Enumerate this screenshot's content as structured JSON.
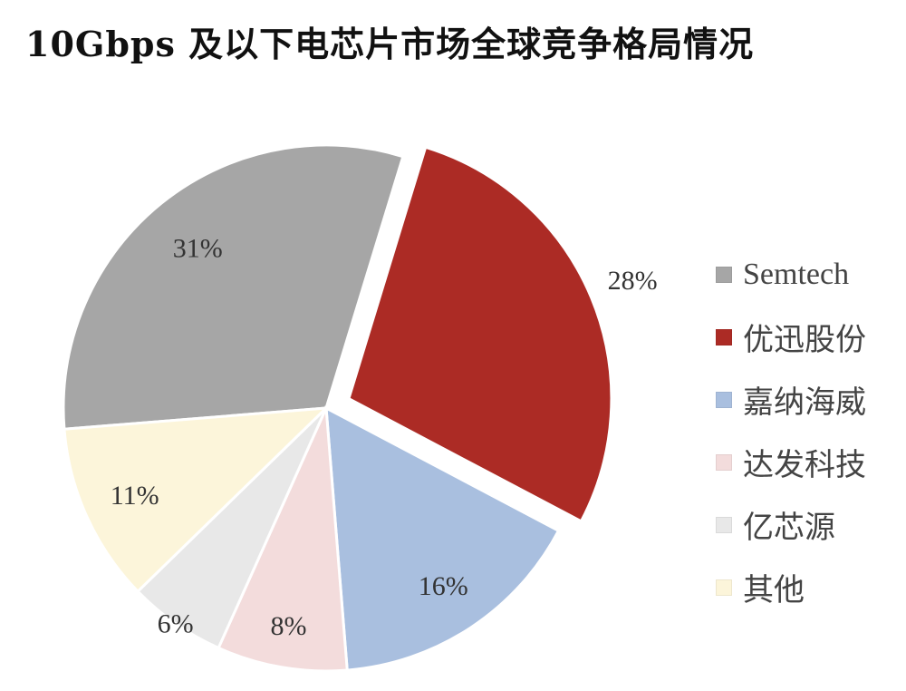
{
  "chart_data": {
    "type": "pie",
    "title": "10Gbps 及以下电芯片市场全球竞争格局情况",
    "categories": [
      "Semtech",
      "优迅股份",
      "嘉纳海威",
      "达发科技",
      "亿芯源",
      "其他"
    ],
    "values": [
      31,
      28,
      16,
      8,
      6,
      11
    ],
    "data_labels": [
      "31%",
      "28%",
      "16%",
      "8%",
      "6%",
      "11%"
    ],
    "colors": [
      "#a6a6a6",
      "#ac2b25",
      "#a9bfdf",
      "#f3dcdc",
      "#e8e8e8",
      "#fcf5da"
    ],
    "exploded": [
      "优迅股份"
    ],
    "legend_position": "right"
  }
}
